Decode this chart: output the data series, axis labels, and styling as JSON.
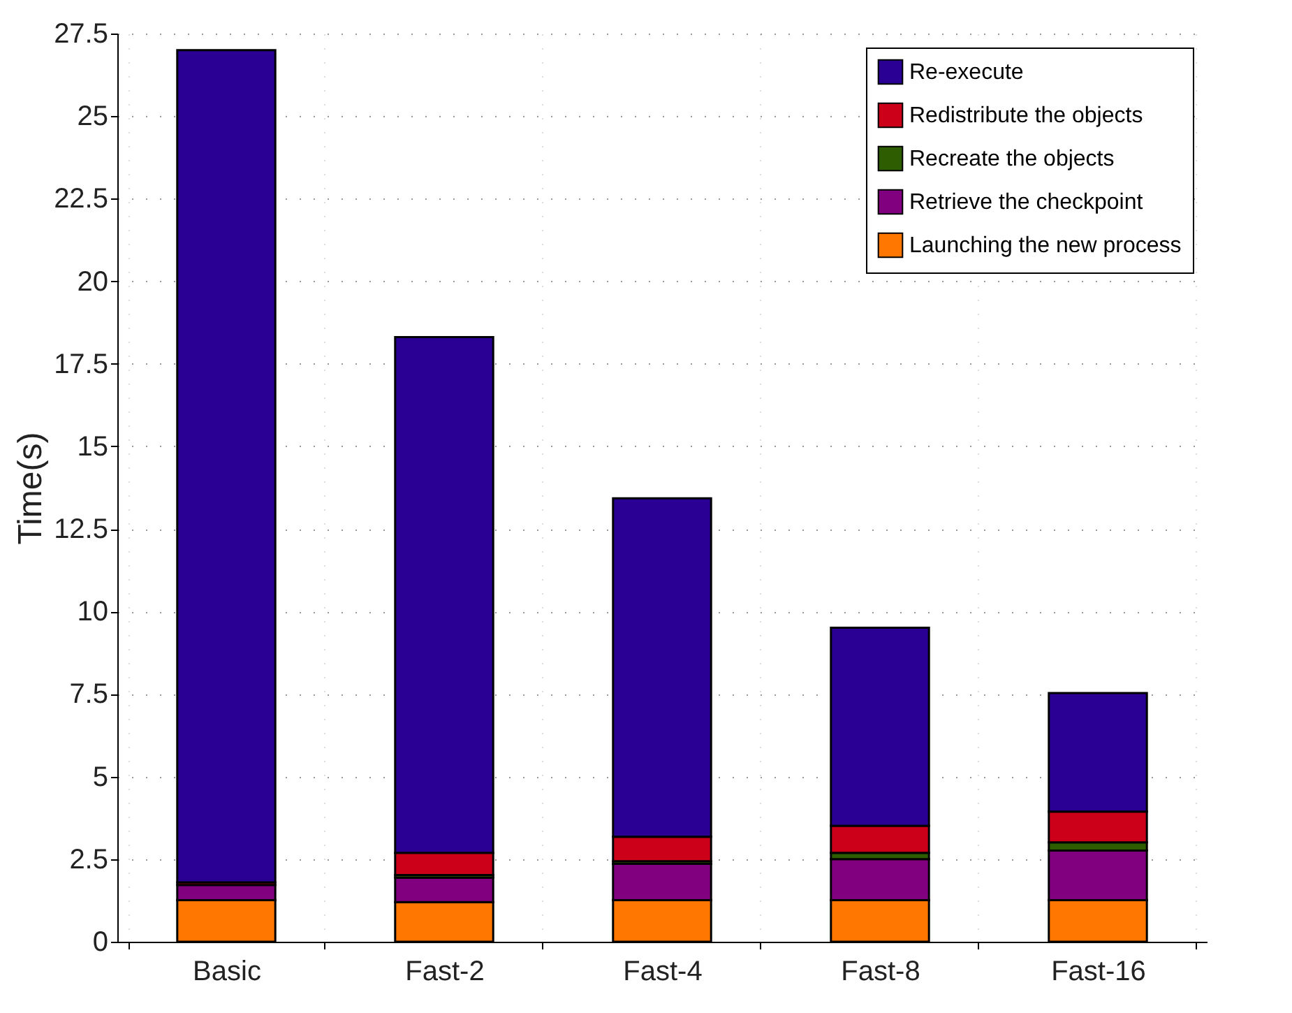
{
  "chart_data": {
    "type": "bar",
    "stacked": true,
    "ylabel": "Time(s)",
    "categories": [
      "Basic",
      "Fast-2",
      "Fast-4",
      "Fast-8",
      "Fast-16"
    ],
    "series": [
      {
        "name": "Launching the new process",
        "color": "#ff7700",
        "values": [
          1.26,
          1.2,
          1.26,
          1.26,
          1.26
        ]
      },
      {
        "name": "Retrieve the checkpoint",
        "color": "#800080",
        "values": [
          0.46,
          0.74,
          1.1,
          1.24,
          1.5
        ]
      },
      {
        "name": "Recreate the objects",
        "color": "#2e5c00",
        "values": [
          null,
          0.08,
          0.08,
          0.19,
          0.25
        ]
      },
      {
        "name": "Redistribute the objects",
        "color": "#cc0019",
        "values": [
          0.08,
          0.67,
          0.74,
          0.82,
          0.93
        ]
      },
      {
        "name": "Re-execute",
        "color": "#2a0094",
        "values": [
          25.2,
          15.62,
          10.25,
          6.0,
          3.59
        ]
      }
    ],
    "ylim": [
      0,
      27.5
    ],
    "yticks": [
      0,
      2.5,
      5,
      7.5,
      10,
      12.5,
      15,
      17.5,
      20,
      22.5,
      25,
      27.5
    ],
    "grid": true,
    "legend": "top right"
  }
}
